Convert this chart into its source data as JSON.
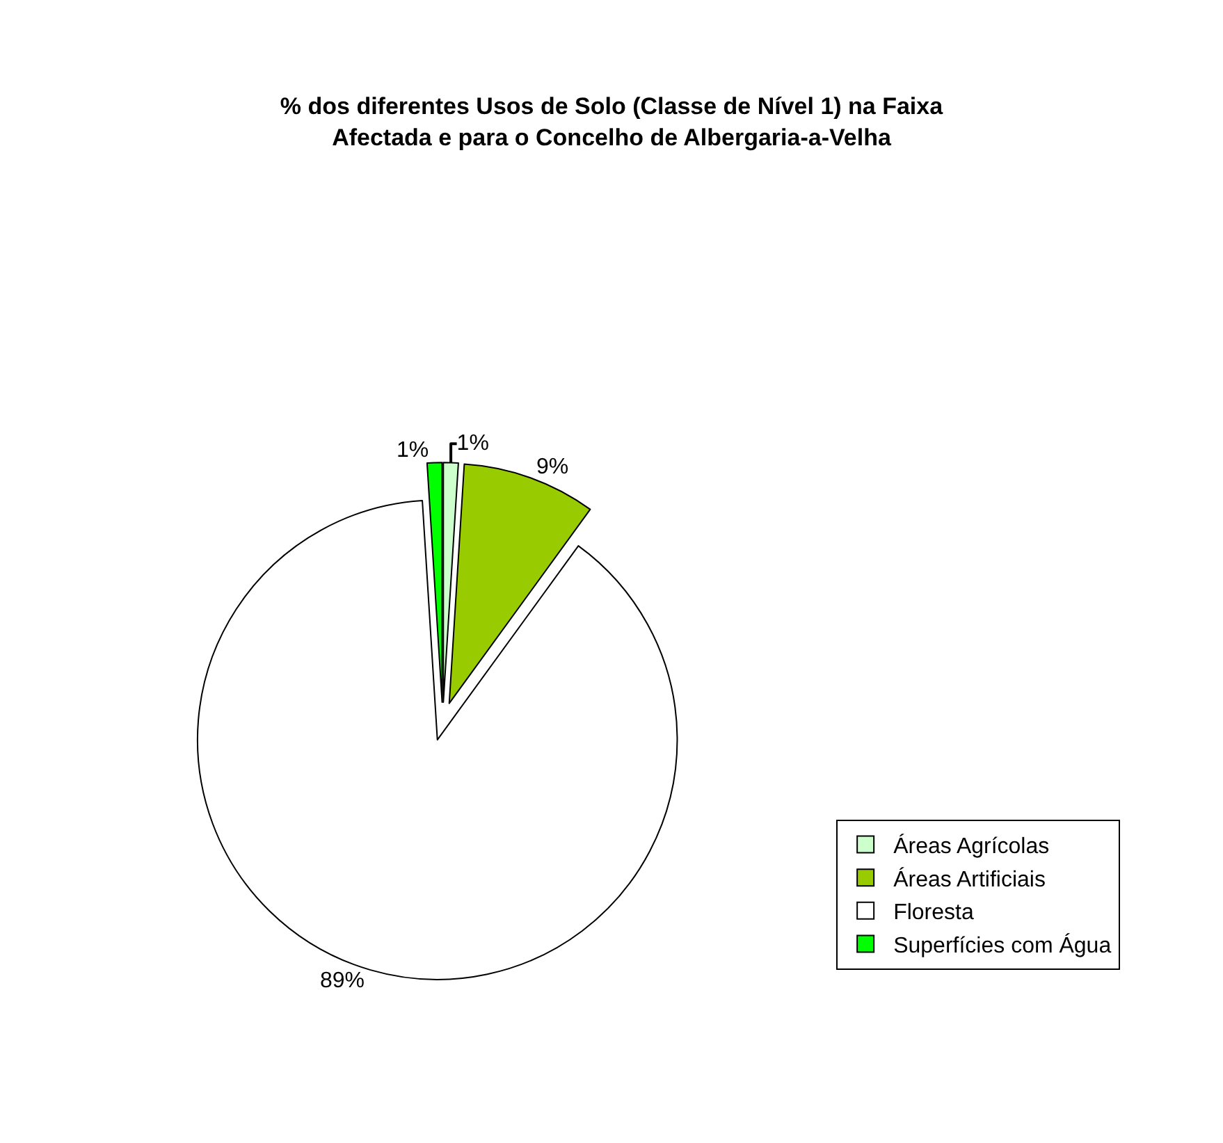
{
  "chart_data": {
    "type": "pie",
    "title": "% dos diferentes Usos de Solo (Classe de Nível 1) na Faixa Afectada e para o Concelho de Albergaria-a-Velha",
    "categories": [
      "Áreas Agrícolas",
      "Áreas Artificiais",
      "Floresta",
      "Superfícies com Água"
    ],
    "values": [
      1,
      9,
      89,
      1
    ],
    "colors": [
      "#ccffcc",
      "#99cc00",
      "#ffffff",
      "#00ff00"
    ],
    "value_labels": [
      "1%",
      "9%",
      "89%",
      "1%"
    ],
    "legend": "right"
  }
}
